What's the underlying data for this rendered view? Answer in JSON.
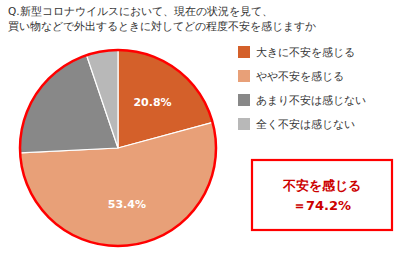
{
  "chart_data": {
    "type": "pie",
    "title": "Q.新型コロナウイルスにおいて、現在の状況を見て、",
    "subtitle": "買い物などで外出するときに対してどの程度不安を感じますか",
    "categories": [
      "大きに不安を感じる",
      "やや不安を感じる",
      "あまり不安は感じない",
      "全く不安は感じない"
    ],
    "values": [
      20.8,
      53.4,
      20.6,
      5.2
    ],
    "value_labels": [
      "20.8%",
      "53.4%",
      null,
      null
    ],
    "data_labels": true,
    "colors": [
      "#d4602a",
      "#e8a078",
      "#888888",
      "#b8b8b8"
    ],
    "annotation": "不安を感じる\n＝74.2%"
  }
}
